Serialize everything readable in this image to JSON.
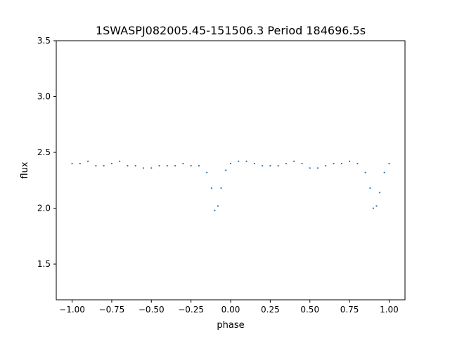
{
  "chart_data": {
    "type": "scatter",
    "title": "1SWASPJ082005.45-151506.3 Period 184696.5s",
    "xlabel": "phase",
    "ylabel": "flux",
    "xlim": [
      -1.1,
      1.1
    ],
    "ylim": [
      1.18,
      3.5
    ],
    "xticks": [
      {
        "value": -1.0,
        "label": "−1.00"
      },
      {
        "value": -0.75,
        "label": "−0.75"
      },
      {
        "value": -0.5,
        "label": "−0.50"
      },
      {
        "value": -0.25,
        "label": "−0.25"
      },
      {
        "value": 0.0,
        "label": "0.00"
      },
      {
        "value": 0.25,
        "label": "0.25"
      },
      {
        "value": 0.5,
        "label": "0.50"
      },
      {
        "value": 0.75,
        "label": "0.75"
      },
      {
        "value": 1.0,
        "label": "1.00"
      }
    ],
    "yticks": [
      {
        "value": 1.5,
        "label": "1.5"
      },
      {
        "value": 2.0,
        "label": "2.0"
      },
      {
        "value": 2.5,
        "label": "2.5"
      },
      {
        "value": 3.0,
        "label": "3.0"
      },
      {
        "value": 3.5,
        "label": "3.5"
      }
    ],
    "grid": false,
    "marker_color": "#1f77b4",
    "series": [
      {
        "x": [
          -1.0,
          -0.95,
          -0.9,
          -0.85,
          -0.8,
          -0.75,
          -0.7,
          -0.65,
          -0.6,
          -0.55,
          -0.5,
          -0.45,
          -0.4,
          -0.35,
          -0.3,
          -0.25,
          -0.2,
          -0.15,
          -0.12,
          -0.1,
          -0.08,
          -0.06,
          -0.03,
          0.0,
          0.05,
          0.1,
          0.15,
          0.2,
          0.25,
          0.3,
          0.35,
          0.4,
          0.45,
          0.5,
          0.55,
          0.6,
          0.65,
          0.7,
          0.75,
          0.8,
          0.85,
          0.88,
          0.9,
          0.92,
          0.94,
          0.97,
          1.0
        ],
        "y": [
          2.4,
          2.4,
          2.42,
          2.38,
          2.38,
          2.4,
          2.42,
          2.38,
          2.38,
          2.36,
          2.36,
          2.38,
          2.38,
          2.38,
          2.4,
          2.38,
          2.38,
          2.32,
          2.18,
          1.98,
          2.02,
          2.18,
          2.34,
          2.4,
          2.42,
          2.42,
          2.4,
          2.38,
          2.38,
          2.38,
          2.4,
          2.42,
          2.4,
          2.36,
          2.36,
          2.38,
          2.4,
          2.4,
          2.42,
          2.4,
          2.32,
          2.18,
          2.0,
          2.02,
          2.14,
          2.32,
          2.4
        ]
      }
    ]
  }
}
